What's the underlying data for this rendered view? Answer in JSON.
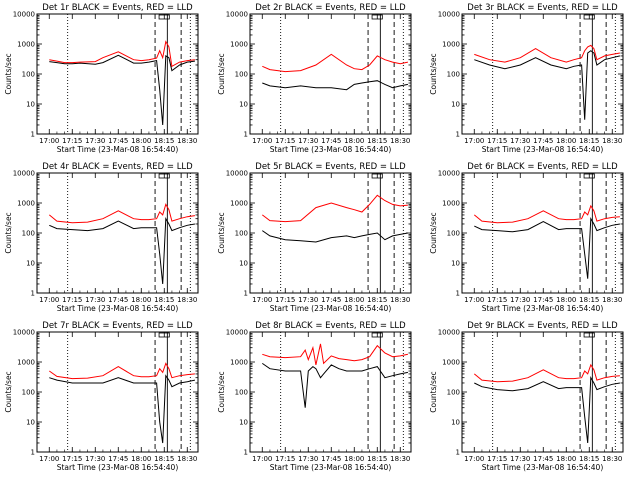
{
  "chart_data": {
    "type": "line",
    "layout": "3x3 grid",
    "xlabel": "Start Time (23-Mar-08 16:54:40)",
    "ylabel": "Counts/sec",
    "yscale": "log",
    "ylim": [
      1,
      10000
    ],
    "xlim_minutes_after_1700": [
      -8,
      97
    ],
    "xtick_labels": [
      "17:00",
      "17:15",
      "17:30",
      "17:45",
      "18:00",
      "18:15",
      "18:30"
    ],
    "ytick_labels": [
      "1",
      "10",
      "100",
      "1000",
      "10000"
    ],
    "series_legend": "BLACK = Events, RED = LLD",
    "vertical_markers": {
      "dotted": [
        "17:12",
        "18:32"
      ],
      "dashed": [
        "18:09",
        "18:26"
      ],
      "solid": [
        "18:17"
      ]
    },
    "colors": {
      "events": "#000000",
      "lld": "#ff0000",
      "axes": "#000000"
    },
    "panels": [
      {
        "title": "Det 1r BLACK = Events, RED = LLD",
        "x": [
          "17:00",
          "17:05",
          "17:10",
          "17:15",
          "17:20",
          "17:30",
          "17:35",
          "17:45",
          "17:55",
          "18:00",
          "18:05",
          "18:10",
          "18:12",
          "18:14",
          "18:16",
          "18:18",
          "18:20",
          "18:25",
          "18:30",
          "18:35"
        ],
        "events": [
          260,
          240,
          220,
          220,
          230,
          210,
          240,
          420,
          230,
          230,
          250,
          280,
          30,
          2,
          400,
          350,
          130,
          200,
          250,
          270
        ],
        "lld": [
          300,
          270,
          240,
          240,
          250,
          260,
          350,
          550,
          300,
          280,
          300,
          340,
          600,
          350,
          1200,
          800,
          180,
          250,
          280,
          300
        ]
      },
      {
        "title": "Det 2r BLACK = Events, RED = LLD",
        "x": [
          "17:00",
          "17:05",
          "17:15",
          "17:25",
          "17:35",
          "17:45",
          "17:55",
          "18:00",
          "18:05",
          "18:10",
          "18:15",
          "18:20",
          "18:25",
          "18:30",
          "18:35"
        ],
        "events": [
          50,
          40,
          35,
          40,
          35,
          35,
          30,
          45,
          50,
          55,
          60,
          45,
          35,
          40,
          45
        ],
        "lld": [
          180,
          140,
          120,
          130,
          200,
          450,
          200,
          150,
          140,
          200,
          400,
          300,
          250,
          220,
          250
        ]
      },
      {
        "title": "Det 3r BLACK = Events, RED = LLD",
        "x": [
          "17:00",
          "17:10",
          "17:20",
          "17:30",
          "17:40",
          "17:50",
          "18:00",
          "18:05",
          "18:10",
          "18:12",
          "18:14",
          "18:16",
          "18:18",
          "18:20",
          "18:25",
          "18:30",
          "18:35"
        ],
        "events": [
          300,
          200,
          150,
          200,
          350,
          200,
          150,
          180,
          200,
          3,
          500,
          600,
          500,
          200,
          300,
          350,
          400
        ],
        "lld": [
          450,
          300,
          250,
          350,
          700,
          350,
          250,
          300,
          350,
          600,
          800,
          900,
          700,
          300,
          400,
          450,
          500
        ]
      },
      {
        "title": "Det 4r BLACK = Events, RED = LLD",
        "x": [
          "17:00",
          "17:05",
          "17:15",
          "17:25",
          "17:35",
          "17:45",
          "17:55",
          "18:00",
          "18:05",
          "18:10",
          "18:12",
          "18:14",
          "18:16",
          "18:18",
          "18:20",
          "18:25",
          "18:30",
          "18:35"
        ],
        "events": [
          180,
          140,
          130,
          120,
          140,
          250,
          140,
          150,
          150,
          150,
          20,
          2,
          300,
          200,
          120,
          150,
          180,
          200
        ],
        "lld": [
          400,
          250,
          220,
          230,
          300,
          550,
          300,
          280,
          280,
          300,
          500,
          400,
          900,
          600,
          250,
          300,
          350,
          380
        ]
      },
      {
        "title": "Det 5r BLACK = Events, RED = LLD",
        "x": [
          "17:00",
          "17:05",
          "17:15",
          "17:25",
          "17:35",
          "17:45",
          "17:55",
          "18:00",
          "18:05",
          "18:10",
          "18:15",
          "18:20",
          "18:25",
          "18:30",
          "18:35"
        ],
        "events": [
          120,
          80,
          60,
          55,
          50,
          70,
          80,
          70,
          80,
          90,
          100,
          60,
          80,
          90,
          100
        ],
        "lld": [
          400,
          260,
          240,
          260,
          700,
          1000,
          700,
          600,
          500,
          900,
          1800,
          1200,
          900,
          800,
          850
        ]
      },
      {
        "title": "Det 6r BLACK = Events, RED = LLD",
        "x": [
          "17:00",
          "17:05",
          "17:15",
          "17:25",
          "17:35",
          "17:45",
          "17:55",
          "18:00",
          "18:05",
          "18:10",
          "18:12",
          "18:14",
          "18:16",
          "18:18",
          "18:20",
          "18:25",
          "18:30",
          "18:35"
        ],
        "events": [
          170,
          130,
          120,
          110,
          130,
          240,
          130,
          140,
          140,
          140,
          20,
          3,
          300,
          200,
          120,
          150,
          180,
          200
        ],
        "lld": [
          400,
          250,
          220,
          230,
          300,
          550,
          300,
          280,
          280,
          300,
          500,
          400,
          800,
          550,
          250,
          300,
          330,
          350
        ]
      },
      {
        "title": "Det 7r BLACK = Events, RED = LLD",
        "x": [
          "17:00",
          "17:05",
          "17:15",
          "17:25",
          "17:35",
          "17:45",
          "17:55",
          "18:00",
          "18:05",
          "18:10",
          "18:12",
          "18:14",
          "18:16",
          "18:18",
          "18:20",
          "18:25",
          "18:30",
          "18:35"
        ],
        "events": [
          300,
          250,
          200,
          200,
          200,
          300,
          200,
          200,
          200,
          200,
          10,
          2,
          350,
          250,
          150,
          200,
          220,
          250
        ],
        "lld": [
          500,
          330,
          280,
          290,
          350,
          700,
          350,
          320,
          320,
          350,
          600,
          450,
          900,
          600,
          300,
          350,
          380,
          400
        ]
      },
      {
        "title": "Det 8r BLACK = Events, RED = LLD",
        "x": [
          "17:00",
          "17:05",
          "17:15",
          "17:25",
          "17:28",
          "17:30",
          "17:33",
          "17:35",
          "17:38",
          "17:40",
          "17:45",
          "17:50",
          "17:55",
          "18:00",
          "18:05",
          "18:10",
          "18:15",
          "18:20",
          "18:25",
          "18:30",
          "18:35"
        ],
        "events": [
          900,
          600,
          500,
          500,
          30,
          500,
          700,
          600,
          300,
          400,
          800,
          600,
          500,
          500,
          500,
          600,
          700,
          300,
          350,
          400,
          450
        ],
        "lld": [
          1800,
          1500,
          1400,
          1500,
          2500,
          1200,
          3000,
          800,
          4000,
          900,
          1600,
          1300,
          1200,
          1100,
          1200,
          1500,
          3500,
          2000,
          1500,
          1600,
          1800
        ]
      },
      {
        "title": "Det 9r BLACK = Events, RED = LLD",
        "x": [
          "17:00",
          "17:05",
          "17:15",
          "17:25",
          "17:35",
          "17:45",
          "17:55",
          "18:00",
          "18:05",
          "18:10",
          "18:12",
          "18:14",
          "18:16",
          "18:18",
          "18:20",
          "18:25",
          "18:30",
          "18:35"
        ],
        "events": [
          200,
          150,
          120,
          110,
          130,
          220,
          130,
          140,
          140,
          140,
          15,
          2,
          300,
          200,
          120,
          150,
          180,
          200
        ],
        "lld": [
          400,
          250,
          220,
          230,
          300,
          550,
          300,
          280,
          280,
          300,
          500,
          400,
          800,
          550,
          250,
          300,
          330,
          350
        ]
      }
    ]
  }
}
